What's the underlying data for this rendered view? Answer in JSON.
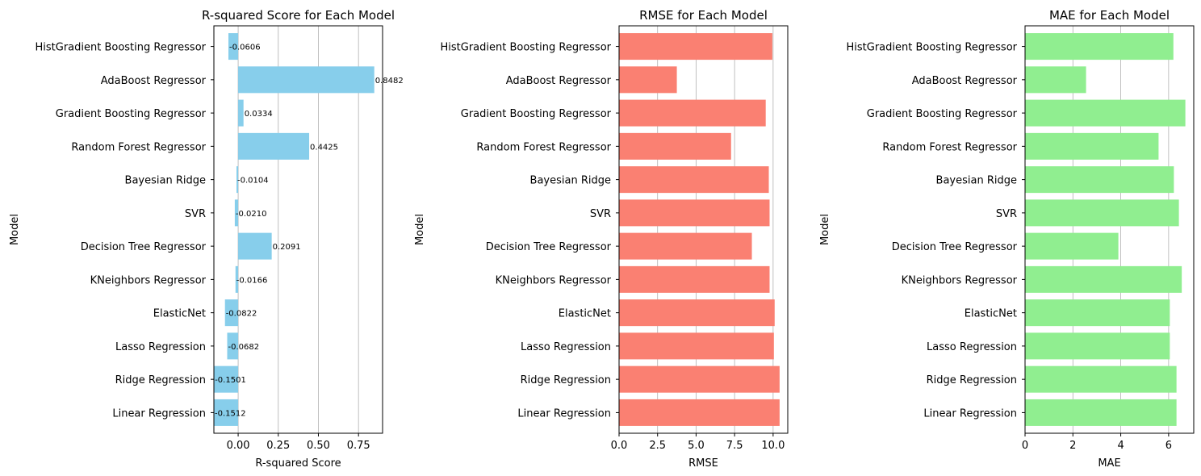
{
  "categories": [
    "Linear Regression",
    "Ridge Regression",
    "Lasso Regression",
    "ElasticNet",
    "KNeighbors Regressor",
    "Decision Tree Regressor",
    "SVR",
    "Bayesian Ridge",
    "Random Forest Regressor",
    "Gradient Boosting Regressor",
    "AdaBoost Regressor",
    "HistGradient Boosting Regressor"
  ],
  "chart_data": [
    {
      "type": "bar",
      "orientation": "horizontal",
      "title": "R-squared Score for Each Model",
      "xlabel": "R-squared Score",
      "ylabel": "Model",
      "color": "#87ceeb",
      "xlim": [
        -0.1512,
        0.9
      ],
      "xticks": [
        0.0,
        0.25,
        0.5,
        0.75
      ],
      "xtick_labels": [
        "0.00",
        "0.25",
        "0.50",
        "0.75"
      ],
      "grid": "x",
      "values": [
        -0.1512,
        -0.1501,
        -0.0682,
        -0.0822,
        -0.0166,
        0.2091,
        -0.021,
        -0.0104,
        0.4425,
        0.0334,
        0.8482,
        -0.0606
      ],
      "value_labels": [
        "-0.1512",
        "-0.1501",
        "-0.0682",
        "-0.0822",
        "-0.0166",
        "0.2091",
        "-0.0210",
        "-0.0104",
        "0.4425",
        "0.0334",
        "0.8482",
        "-0.0606"
      ]
    },
    {
      "type": "bar",
      "orientation": "horizontal",
      "title": "RMSE for Each Model",
      "xlabel": "RMSE",
      "ylabel": "Model",
      "color": "#fa8072",
      "xlim": [
        0,
        10.95
      ],
      "xticks": [
        0.0,
        2.5,
        5.0,
        7.5,
        10.0
      ],
      "xtick_labels": [
        "0.0",
        "2.5",
        "5.0",
        "7.5",
        "10.0"
      ],
      "grid": "x",
      "values": [
        10.42,
        10.42,
        10.05,
        10.1,
        9.77,
        8.62,
        9.77,
        9.72,
        7.27,
        9.52,
        3.75,
        9.95
      ]
    },
    {
      "type": "bar",
      "orientation": "horizontal",
      "title": "MAE for Each Model",
      "xlabel": "MAE",
      "ylabel": "Model",
      "color": "#90ee90",
      "xlim": [
        0,
        7.05
      ],
      "xticks": [
        0,
        2,
        4,
        6
      ],
      "xtick_labels": [
        "0",
        "2",
        "4",
        "6"
      ],
      "grid": "x",
      "values": [
        6.33,
        6.33,
        6.05,
        6.05,
        6.55,
        3.9,
        6.43,
        6.22,
        5.58,
        6.7,
        2.55,
        6.2
      ]
    }
  ]
}
